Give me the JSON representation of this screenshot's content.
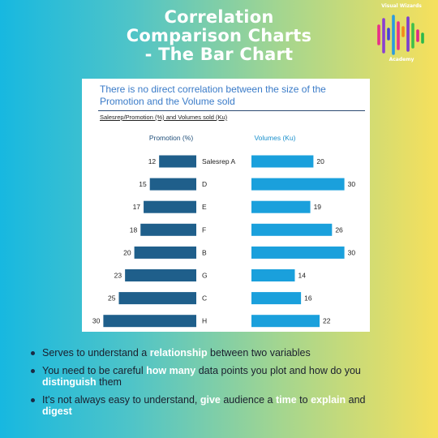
{
  "header": {
    "title_lines": [
      "Correlation",
      "Comparison Charts",
      "- The Bar Chart"
    ]
  },
  "logo": {
    "top_text": "Visual Wizards",
    "bottom_text": "Academy",
    "stripe_colors": [
      "#e8308a",
      "#8a3fd1",
      "#4a3fd8",
      "#2a9be0",
      "#e8308a",
      "#f28a1c",
      "#7a3fd0",
      "#3fc04a",
      "#d82a8a",
      "#2ab84a"
    ]
  },
  "chart_data": {
    "type": "bar",
    "title": "There is no direct correlation between the size of the Promotion and the Volume sold",
    "subtitle": "Salesrep/Promotion (%) and Volumes sold (Ku)",
    "categories": [
      "Salesrep A",
      "D",
      "E",
      "F",
      "B",
      "G",
      "C",
      "H"
    ],
    "series": [
      {
        "name": "Promotion (%)",
        "values": [
          12,
          15,
          17,
          18,
          20,
          23,
          25,
          30
        ],
        "color": "#1f5f8b",
        "direction": "left"
      },
      {
        "name": "Volumes (Ku)",
        "values": [
          20,
          30,
          19,
          26,
          30,
          14,
          16,
          22
        ],
        "color": "#1aa0dc",
        "direction": "right"
      }
    ]
  },
  "bullets": [
    [
      {
        "text": "Serves to understand a ",
        "style": "plain"
      },
      {
        "text": "relationship",
        "style": "hl"
      },
      {
        "text": " between two variables",
        "style": "plain"
      }
    ],
    [
      {
        "text": "You need to be careful ",
        "style": "plain"
      },
      {
        "text": "how many",
        "style": "hl"
      },
      {
        "text": " data points you plot and how do you ",
        "style": "plain"
      },
      {
        "text": "distinguish",
        "style": "hl"
      },
      {
        "text": " them",
        "style": "plain"
      }
    ],
    [
      {
        "text": "It's not always easy to understand, ",
        "style": "plain"
      },
      {
        "text": "give",
        "style": "hl"
      },
      {
        "text": " audience a ",
        "style": "plain"
      },
      {
        "text": "time",
        "style": "hl"
      },
      {
        "text": " to ",
        "style": "plain"
      },
      {
        "text": "explain",
        "style": "hl"
      },
      {
        "text": " and ",
        "style": "plain"
      },
      {
        "text": "digest",
        "style": "hl"
      }
    ]
  ]
}
